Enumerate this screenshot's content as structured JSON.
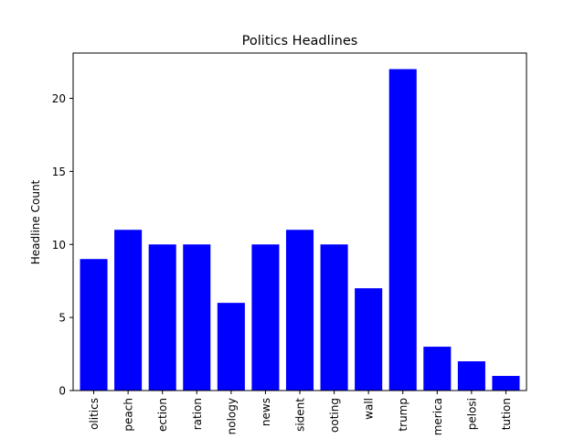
{
  "chart_data": {
    "type": "bar",
    "title": "Politics Headlines",
    "xlabel": "",
    "ylabel": "Headline Count",
    "categories": [
      "olitics",
      "peach",
      "ection",
      "ration",
      "nology",
      "news",
      "sident",
      "ooting",
      "wall",
      "trump",
      "merica",
      "pelosi",
      "tution"
    ],
    "values": [
      9,
      11,
      10,
      10,
      6,
      10,
      11,
      10,
      7,
      22,
      3,
      2,
      1
    ],
    "ylim": [
      0,
      23.1
    ],
    "yticks": [
      0,
      5,
      10,
      15,
      20
    ],
    "bar_color": "#0000ff",
    "grid": false,
    "legend": "none"
  }
}
